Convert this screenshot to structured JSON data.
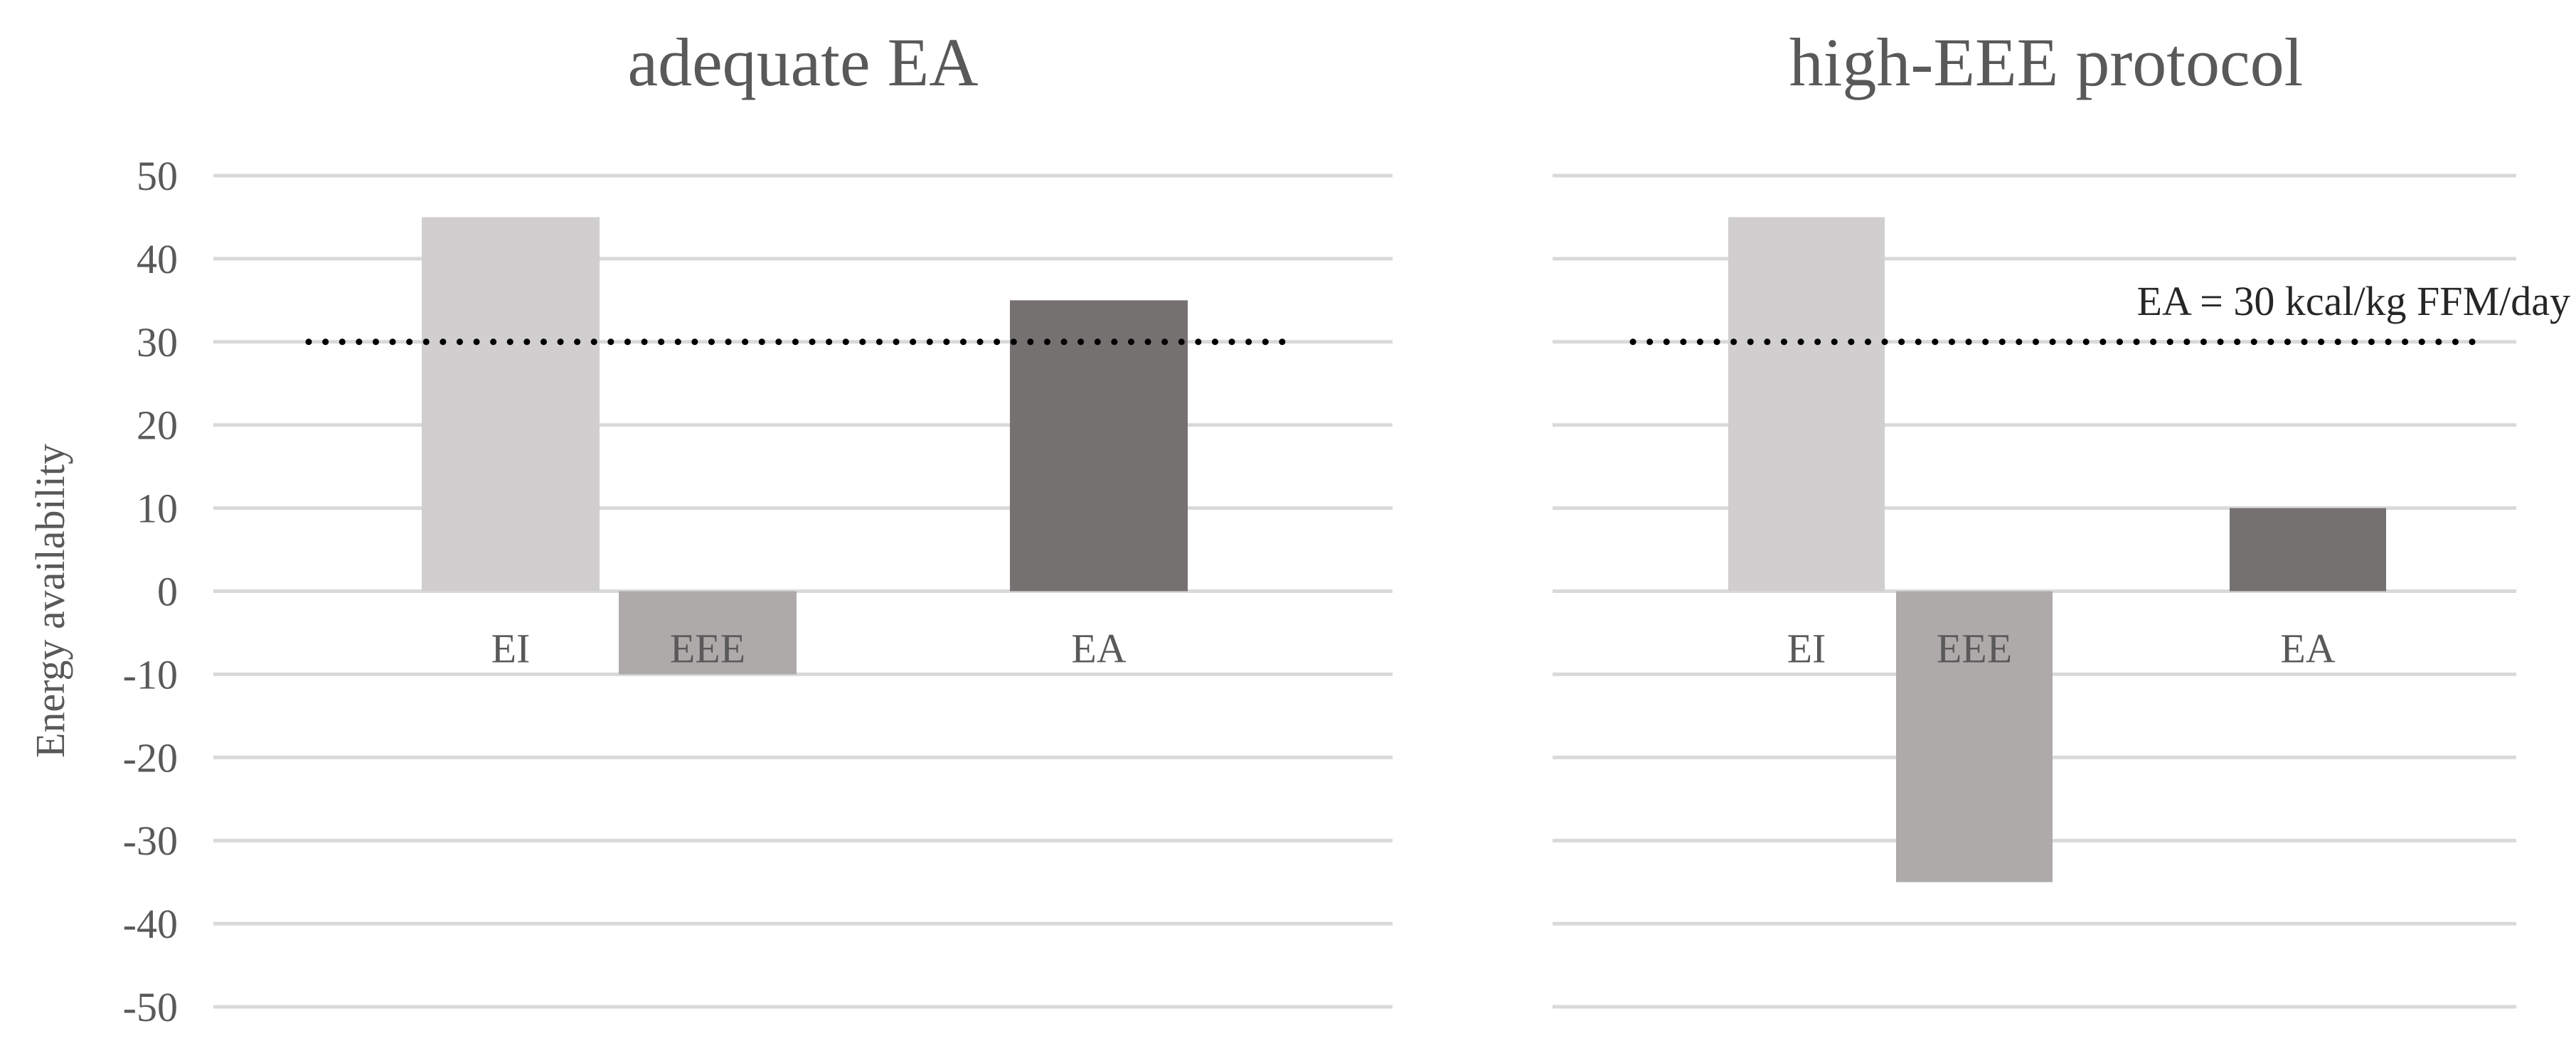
{
  "chart_data": {
    "type": "bar",
    "ylabel": "Energy availability",
    "ylim": [
      -50,
      50
    ],
    "y_ticks": [
      50,
      40,
      30,
      20,
      10,
      0,
      -10,
      -20,
      -30,
      -40,
      -50
    ],
    "grid": true,
    "threshold": {
      "value": 30,
      "label": "EA = 30 kcal/kg FFM/day",
      "style": "dotted",
      "color": "#000000"
    },
    "colors": {
      "EI": "#d0cece",
      "EEE": "#aeaaaa",
      "EA": "#767171"
    },
    "panels": [
      {
        "title": "adequate EA",
        "categories": [
          "EI",
          "EEE",
          "EA"
        ],
        "values": [
          45,
          -10,
          35
        ]
      },
      {
        "title": "high-EEE protocol",
        "categories": [
          "EI",
          "EEE",
          "EA"
        ],
        "values": [
          45,
          -35,
          10
        ]
      }
    ]
  }
}
